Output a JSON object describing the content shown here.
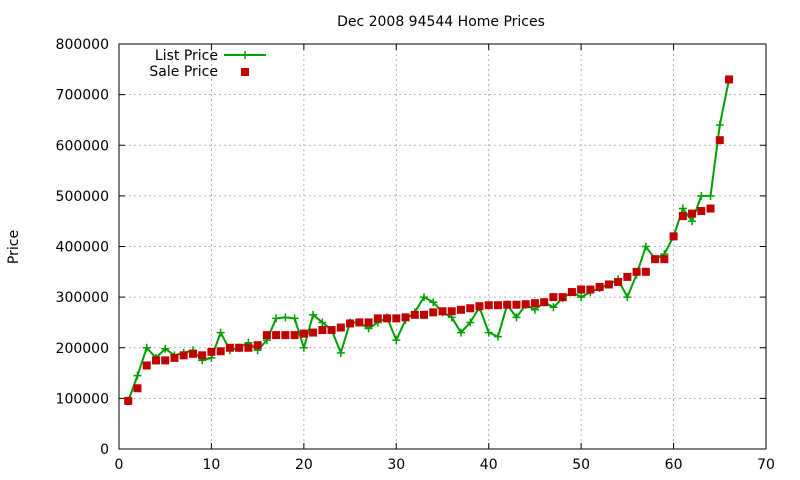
{
  "chart_data": {
    "type": "line",
    "title": "Dec 2008 94544 Home Prices",
    "xlabel": "",
    "ylabel": "Price",
    "xlim": [
      0,
      70
    ],
    "ylim": [
      0,
      800000
    ],
    "xticks": [
      "0",
      "10",
      "20",
      "30",
      "40",
      "50",
      "60",
      "70"
    ],
    "yticks": [
      "0",
      "100000",
      "200000",
      "300000",
      "400000",
      "500000",
      "600000",
      "700000",
      "800000"
    ],
    "grid": true,
    "legend_position": "top-left",
    "series": [
      {
        "name": "List Price",
        "style": "line-plus",
        "color": "#00a000",
        "x": [
          1,
          2,
          3,
          4,
          5,
          6,
          7,
          8,
          9,
          10,
          11,
          12,
          13,
          14,
          15,
          16,
          17,
          18,
          19,
          20,
          21,
          22,
          23,
          24,
          25,
          26,
          27,
          28,
          29,
          30,
          31,
          32,
          33,
          34,
          35,
          36,
          37,
          38,
          39,
          40,
          41,
          42,
          43,
          44,
          45,
          46,
          47,
          48,
          49,
          50,
          51,
          52,
          53,
          54,
          55,
          56,
          57,
          58,
          59,
          60,
          61,
          62,
          63,
          64,
          65,
          66
        ],
        "y": [
          95000,
          145000,
          200000,
          180000,
          198000,
          185000,
          190000,
          195000,
          175000,
          180000,
          230000,
          195000,
          200000,
          210000,
          195000,
          215000,
          258000,
          260000,
          258000,
          200000,
          265000,
          250000,
          235000,
          190000,
          250000,
          250000,
          238000,
          250000,
          260000,
          215000,
          255000,
          270000,
          300000,
          290000,
          270000,
          260000,
          230000,
          250000,
          280000,
          230000,
          222000,
          285000,
          260000,
          285000,
          275000,
          290000,
          280000,
          298000,
          310000,
          300000,
          310000,
          318000,
          325000,
          335000,
          300000,
          345000,
          400000,
          375000,
          385000,
          420000,
          475000,
          450000,
          500000,
          500000,
          640000,
          730000
        ]
      },
      {
        "name": "Sale Price",
        "style": "square",
        "color": "#c00000",
        "x": [
          1,
          2,
          3,
          4,
          5,
          6,
          7,
          8,
          9,
          10,
          11,
          12,
          13,
          14,
          15,
          16,
          17,
          18,
          19,
          20,
          21,
          22,
          23,
          24,
          25,
          26,
          27,
          28,
          29,
          30,
          31,
          32,
          33,
          34,
          35,
          36,
          37,
          38,
          39,
          40,
          41,
          42,
          43,
          44,
          45,
          46,
          47,
          48,
          49,
          50,
          51,
          52,
          53,
          54,
          55,
          56,
          57,
          58,
          59,
          60,
          61,
          62,
          63,
          64,
          65,
          66
        ],
        "y": [
          95000,
          120000,
          165000,
          175000,
          175000,
          180000,
          185000,
          188000,
          185000,
          192000,
          193000,
          200000,
          200000,
          200000,
          205000,
          225000,
          225000,
          225000,
          225000,
          228000,
          230000,
          235000,
          235000,
          240000,
          248000,
          250000,
          250000,
          258000,
          258000,
          258000,
          260000,
          265000,
          265000,
          270000,
          272000,
          272000,
          275000,
          278000,
          282000,
          284000,
          284000,
          285000,
          285000,
          286000,
          288000,
          290000,
          300000,
          300000,
          310000,
          315000,
          315000,
          320000,
          325000,
          330000,
          340000,
          350000,
          350000,
          375000,
          375000,
          420000,
          460000,
          465000,
          470000,
          475000,
          610000,
          730000
        ]
      }
    ]
  }
}
